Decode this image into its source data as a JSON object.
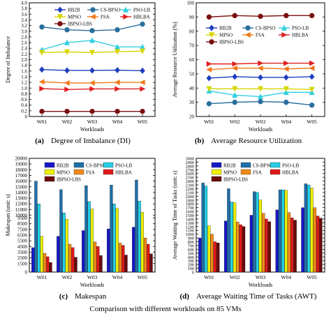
{
  "figure_caption": "Comparison with different workloads on 85 VMs",
  "subcaptions": [
    {
      "letter": "(a)",
      "text": "Degree of Imbalance (DI)"
    },
    {
      "letter": "(b)",
      "text": "Average Resource Utilization"
    },
    {
      "letter": "(c)",
      "text": "Makespan"
    },
    {
      "letter": "(d)",
      "text": "Average Waiting Time of Tasks (AWT)"
    }
  ],
  "chart_data": [
    {
      "type": "line",
      "xlabel": "Workloads",
      "ylabel": "Degree of Imbalance",
      "ylim": [
        0,
        4.0
      ],
      "yticks": [
        "0",
        "0.2",
        "0.4",
        "0.6",
        "0.8",
        "1.0",
        "1.2",
        "1.4",
        "1.6",
        "1.8",
        "2.0",
        "2.2",
        "2.4",
        "2.6",
        "2.8",
        "3.0",
        "3.2",
        "3.4",
        "3.6",
        "3.8",
        "4.0"
      ],
      "categories": [
        "W01",
        "W02",
        "W03",
        "W04",
        "W05"
      ],
      "legend": [
        "RB2B",
        "CS-BPSO",
        "PSO-LB",
        "MPSO",
        "FSA",
        "HBLBA",
        "IBPSO-LBS"
      ],
      "legend_position": "top",
      "series": [
        {
          "name": "RB2B",
          "color": "#1f3fbf",
          "marker": "diamond",
          "values": [
            1.65,
            1.62,
            1.62,
            1.63,
            1.61
          ]
        },
        {
          "name": "CS-BPSO",
          "color": "#2a6f9e",
          "marker": "circle",
          "values": [
            3.15,
            3.05,
            3.02,
            3.05,
            3.25
          ]
        },
        {
          "name": "PSO-LB",
          "color": "#30d0e0",
          "marker": "triangle-up",
          "values": [
            2.35,
            2.6,
            2.68,
            2.45,
            2.45
          ]
        },
        {
          "name": "MPSO",
          "color": "#d6d600",
          "marker": "triangle-down",
          "values": [
            2.25,
            2.27,
            2.25,
            2.28,
            2.3
          ]
        },
        {
          "name": "FSA",
          "color": "#f07a1a",
          "marker": "triangle-left",
          "values": [
            1.22,
            1.18,
            1.18,
            1.2,
            1.2
          ]
        },
        {
          "name": "HBLBA",
          "color": "#e02020",
          "marker": "triangle-right",
          "values": [
            0.98,
            0.95,
            0.97,
            0.97,
            0.97
          ]
        },
        {
          "name": "IBPSO-LBS",
          "color": "#7a1010",
          "marker": "circle",
          "values": [
            0.18,
            0.18,
            0.18,
            0.18,
            0.18
          ]
        }
      ]
    },
    {
      "type": "line",
      "xlabel": "Workloads",
      "ylabel": "Average Resource Utilization (%)",
      "ylim": [
        20,
        100
      ],
      "yticks": [
        "20",
        "30",
        "40",
        "50",
        "60",
        "70",
        "80",
        "90",
        "100"
      ],
      "categories": [
        "W01",
        "W02",
        "W03",
        "W04",
        "W05"
      ],
      "legend": [
        "RB2B",
        "CS-BPSO",
        "PSO-LB",
        "MPSO",
        "FSA",
        "HBLBA",
        "IBPSO-LBS"
      ],
      "legend_position": "center",
      "series": [
        {
          "name": "RB2B",
          "color": "#1f3fbf",
          "marker": "diamond",
          "values": [
            47,
            48,
            47.5,
            47.5,
            48
          ]
        },
        {
          "name": "CS-BPSO",
          "color": "#2a6f9e",
          "marker": "circle",
          "values": [
            29,
            30,
            30.5,
            30,
            28
          ]
        },
        {
          "name": "PSO-LB",
          "color": "#30d0e0",
          "marker": "triangle-up",
          "values": [
            38,
            35,
            34,
            37,
            37
          ]
        },
        {
          "name": "MPSO",
          "color": "#d6d600",
          "marker": "triangle-down",
          "values": [
            39.5,
            39.5,
            39.5,
            39.5,
            39
          ]
        },
        {
          "name": "FSA",
          "color": "#f07a1a",
          "marker": "triangle-left",
          "values": [
            53,
            54,
            54,
            53.5,
            54
          ]
        },
        {
          "name": "HBLBA",
          "color": "#e02020",
          "marker": "triangle-right",
          "values": [
            57,
            57,
            57.5,
            57.5,
            57.5
          ]
        },
        {
          "name": "IBPSO-LBS",
          "color": "#7a1010",
          "marker": "circle",
          "values": [
            90,
            91,
            90.5,
            91,
            91
          ]
        }
      ]
    },
    {
      "type": "bar",
      "xlabel": "Workloads",
      "ylabel": "Makespan (unit: s)",
      "ylim": [
        0,
        20000
      ],
      "yticks": [
        "0",
        "1500",
        "2500",
        "3500",
        "4500",
        "5500",
        "6500",
        "7500",
        "8500",
        "9500",
        "10000",
        "11000",
        "12000",
        "13000",
        "14000",
        "15000",
        "16000",
        "17000",
        "18000",
        "19000",
        "20000"
      ],
      "categories": [
        "W01",
        "W02",
        "W03",
        "W04",
        "W05"
      ],
      "legend": [
        "RB2B",
        "CS-BPSO",
        "PSO-LB",
        "MPSO",
        "FSA",
        "HBLBA",
        "IBPSO-LBS"
      ],
      "legend_position": "top-left",
      "series": [
        {
          "name": "RB2B",
          "color": "#1818c8",
          "values": [
            4300,
            6300,
            7300,
            7600,
            7900
          ]
        },
        {
          "name": "CS-BPSO",
          "color": "#1f6fa8",
          "values": [
            16000,
            14500,
            15200,
            15300,
            16200
          ]
        },
        {
          "name": "PSO-LB",
          "color": "#26d0e6",
          "values": [
            12000,
            10400,
            12400,
            12000,
            12500
          ]
        },
        {
          "name": "MPSO",
          "color": "#f0f000",
          "values": [
            6300,
            9300,
            11100,
            11200,
            10500
          ]
        },
        {
          "name": "FSA",
          "color": "#f28a1a",
          "values": [
            3300,
            4900,
            5300,
            5100,
            6000
          ]
        },
        {
          "name": "HBLBA",
          "color": "#e01818",
          "values": [
            2700,
            4300,
            4500,
            4700,
            4900
          ]
        },
        {
          "name": "IBPSO-LBS",
          "color": "#6a0a0a",
          "values": [
            1700,
            2600,
            2900,
            3000,
            3200
          ]
        }
      ]
    },
    {
      "type": "bar",
      "xlabel": "Workloads",
      "ylabel": "Average Waiting Time of Tasks (unit: s)",
      "ylim": [
        0,
        3000
      ],
      "yticks": [
        "0",
        "100",
        "200",
        "300",
        "400",
        "500",
        "600",
        "700",
        "800",
        "900",
        "1000",
        "1100",
        "1200",
        "1300",
        "1400",
        "1500",
        "1600",
        "1700",
        "1800",
        "1900",
        "2000",
        "2100",
        "2200",
        "2300",
        "2400",
        "2500",
        "2600",
        "2700",
        "2800",
        "2900",
        "3000"
      ],
      "categories": [
        "W01",
        "W02",
        "W03",
        "W04",
        "W05"
      ],
      "legend": [
        "RB2B",
        "CS-BPSO",
        "PSO-LB",
        "MPSO",
        "FSA",
        "HBLBA",
        "IBPSO-LBS"
      ],
      "legend_position": "top-left",
      "series": [
        {
          "name": "RB2B",
          "color": "#1818c8",
          "values": [
            900,
            1350,
            1500,
            1640,
            1700
          ]
        },
        {
          "name": "CS-BPSO",
          "color": "#1f6fa8",
          "values": [
            2350,
            2200,
            2120,
            2170,
            2330
          ]
        },
        {
          "name": "PSO-LB",
          "color": "#26d0e6",
          "values": [
            2270,
            1850,
            2100,
            2170,
            2300
          ]
        },
        {
          "name": "MPSO",
          "color": "#f0f000",
          "values": [
            1220,
            1830,
            1900,
            2160,
            2220
          ]
        },
        {
          "name": "FSA",
          "color": "#f28a1a",
          "values": [
            1000,
            1320,
            1550,
            1570,
            1700
          ]
        },
        {
          "name": "HBLBA",
          "color": "#e01818",
          "values": [
            800,
            1250,
            1400,
            1430,
            1480
          ]
        },
        {
          "name": "IBPSO-LBS",
          "color": "#6a0a0a",
          "values": [
            770,
            1200,
            1330,
            1370,
            1420
          ]
        }
      ]
    }
  ]
}
